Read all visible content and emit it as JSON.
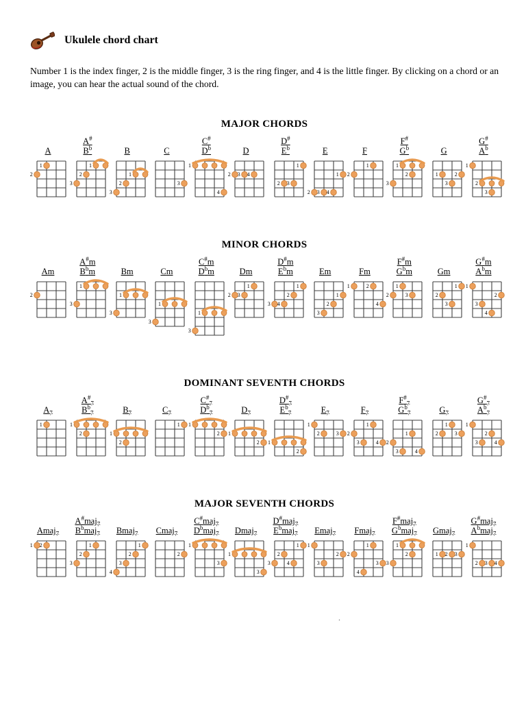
{
  "page": {
    "icon": "ukulele-icon",
    "title": "Ukulele chord chart",
    "intro": "Number 1 is the index finger, 2 is the middle finger, 3 is the ring finger, and 4 is the little finger. By clicking on a chord or an image, you can hear the actual sound of the chord.",
    "stray_mark": "."
  },
  "colors": {
    "dot_fill": "#ECA05C",
    "dot_stroke": "#CC7F38",
    "barre": "#E89A4F",
    "grid": "#3f3f3f",
    "number": "#000000"
  },
  "diagram": {
    "strings": 4,
    "default_frets": 4,
    "dot_format": "string,fret,finger",
    "barre_format": "fret,fromString,toString,finger"
  },
  "sections": [
    {
      "title": "MAJOR CHORDS",
      "chords": [
        {
          "labels": [
            "A"
          ],
          "dots": [
            [
              2,
              1,
              1
            ],
            [
              1,
              2,
              2
            ]
          ]
        },
        {
          "labels": [
            "A#",
            "Bb"
          ],
          "barres": [
            [
              1,
              3,
              4,
              1
            ]
          ],
          "dots": [
            [
              2,
              2,
              2
            ],
            [
              1,
              3,
              3
            ]
          ]
        },
        {
          "labels": [
            "B"
          ],
          "barres": [
            [
              2,
              3,
              4,
              1
            ]
          ],
          "dots": [
            [
              2,
              3,
              2
            ],
            [
              1,
              4,
              3
            ]
          ]
        },
        {
          "labels": [
            "C"
          ],
          "dots": [
            [
              4,
              3,
              3
            ]
          ]
        },
        {
          "labels": [
            "C#",
            "Db"
          ],
          "barres": [
            [
              1,
              1,
              4,
              1
            ]
          ],
          "dots": [
            [
              4,
              4,
              4
            ]
          ]
        },
        {
          "labels": [
            "D"
          ],
          "dots": [
            [
              1,
              2,
              2
            ],
            [
              2,
              2,
              3
            ],
            [
              3,
              2,
              4
            ]
          ]
        },
        {
          "labels": [
            "D#",
            "Eb"
          ],
          "dots": [
            [
              4,
              1,
              1
            ],
            [
              2,
              3,
              2
            ],
            [
              3,
              3,
              3
            ]
          ]
        },
        {
          "labels": [
            "E"
          ],
          "dots": [
            [
              4,
              2,
              1
            ],
            [
              1,
              4,
              2
            ],
            [
              2,
              4,
              3
            ],
            [
              3,
              4,
              4
            ]
          ]
        },
        {
          "labels": [
            "F"
          ],
          "dots": [
            [
              3,
              1,
              1
            ],
            [
              1,
              2,
              2
            ]
          ]
        },
        {
          "labels": [
            "F#",
            "Gb"
          ],
          "barres": [
            [
              1,
              2,
              4,
              1
            ]
          ],
          "dots": [
            [
              3,
              2,
              2
            ],
            [
              1,
              3,
              3
            ]
          ]
        },
        {
          "labels": [
            "G"
          ],
          "dots": [
            [
              2,
              2,
              1
            ],
            [
              4,
              2,
              2
            ],
            [
              3,
              3,
              3
            ]
          ]
        },
        {
          "labels": [
            "G#",
            "Ab"
          ],
          "barres": [
            [
              3,
              2,
              4,
              2
            ]
          ],
          "dots": [
            [
              1,
              1,
              1
            ],
            [
              3,
              4,
              3
            ]
          ]
        }
      ]
    },
    {
      "title": "MINOR CHORDS",
      "chords": [
        {
          "labels": [
            "Am"
          ],
          "dots": [
            [
              1,
              2,
              2
            ]
          ]
        },
        {
          "labels": [
            "A#m",
            "Bbm"
          ],
          "barres": [
            [
              1,
              2,
              4,
              1
            ]
          ],
          "dots": [
            [
              1,
              3,
              3
            ]
          ]
        },
        {
          "labels": [
            "Bm"
          ],
          "barres": [
            [
              2,
              2,
              4,
              1
            ]
          ],
          "dots": [
            [
              1,
              4,
              3
            ]
          ]
        },
        {
          "labels": [
            "Cm"
          ],
          "barres": [
            [
              3,
              2,
              4,
              1
            ]
          ],
          "dots": [
            [
              1,
              5,
              3
            ]
          ]
        },
        {
          "labels": [
            "C#m",
            "Dbm"
          ],
          "barres": [
            [
              4,
              2,
              4,
              1
            ]
          ],
          "dots": [
            [
              1,
              6,
              3
            ]
          ]
        },
        {
          "labels": [
            "Dm"
          ],
          "dots": [
            [
              3,
              1,
              1
            ],
            [
              1,
              2,
              2
            ],
            [
              2,
              2,
              3
            ]
          ]
        },
        {
          "labels": [
            "D#m",
            "Ebm"
          ],
          "dots": [
            [
              4,
              1,
              1
            ],
            [
              3,
              2,
              2
            ],
            [
              1,
              3,
              3
            ],
            [
              2,
              3,
              4
            ]
          ]
        },
        {
          "labels": [
            "Em"
          ],
          "dots": [
            [
              4,
              2,
              1
            ],
            [
              3,
              3,
              2
            ],
            [
              2,
              4,
              3
            ]
          ]
        },
        {
          "labels": [
            "Fm"
          ],
          "dots": [
            [
              1,
              1,
              1
            ],
            [
              3,
              1,
              2
            ],
            [
              4,
              3,
              4
            ]
          ]
        },
        {
          "labels": [
            "F#m",
            "Gbm"
          ],
          "dots": [
            [
              2,
              1,
              1
            ],
            [
              1,
              2,
              2
            ],
            [
              3,
              2,
              3
            ]
          ]
        },
        {
          "labels": [
            "Gm"
          ],
          "dots": [
            [
              4,
              1,
              1
            ],
            [
              2,
              2,
              2
            ],
            [
              3,
              3,
              3
            ]
          ]
        },
        {
          "labels": [
            "G#m",
            "Abm"
          ],
          "dots": [
            [
              1,
              1,
              1
            ],
            [
              4,
              2,
              2
            ],
            [
              2,
              3,
              3
            ],
            [
              3,
              4,
              4
            ]
          ]
        }
      ]
    },
    {
      "title": "DOMINANT SEVENTH CHORDS",
      "chords": [
        {
          "labels": [
            "A7"
          ],
          "dots": [
            [
              2,
              1,
              1
            ]
          ]
        },
        {
          "labels": [
            "A#7",
            "Bb7"
          ],
          "barres": [
            [
              1,
              1,
              4,
              1
            ]
          ],
          "dots": [
            [
              2,
              2,
              2
            ]
          ]
        },
        {
          "labels": [
            "B7"
          ],
          "barres": [
            [
              2,
              1,
              4,
              1
            ]
          ],
          "dots": [
            [
              2,
              3,
              2
            ]
          ]
        },
        {
          "labels": [
            "C7"
          ],
          "dots": [
            [
              4,
              1,
              1
            ]
          ]
        },
        {
          "labels": [
            "C#7",
            "Db7"
          ],
          "barres": [
            [
              1,
              1,
              4,
              1
            ]
          ],
          "dots": [
            [
              4,
              2,
              2
            ]
          ]
        },
        {
          "labels": [
            "D7"
          ],
          "barres": [
            [
              2,
              1,
              4,
              1
            ]
          ],
          "dots": [
            [
              4,
              3,
              2
            ]
          ]
        },
        {
          "labels": [
            "D#7",
            "Eb7"
          ],
          "barres": [
            [
              3,
              1,
              4,
              1
            ]
          ],
          "dots": [
            [
              4,
              4,
              2
            ]
          ]
        },
        {
          "labels": [
            "E7"
          ],
          "dots": [
            [
              1,
              1,
              1
            ],
            [
              2,
              2,
              2
            ],
            [
              4,
              2,
              3
            ]
          ]
        },
        {
          "labels": [
            "F7"
          ],
          "dots": [
            [
              3,
              1,
              1
            ],
            [
              1,
              2,
              2
            ],
            [
              2,
              3,
              3
            ],
            [
              4,
              3,
              4
            ]
          ]
        },
        {
          "labels": [
            "F#7",
            "Gb7"
          ],
          "dots": [
            [
              3,
              2,
              1
            ],
            [
              1,
              3,
              2
            ],
            [
              2,
              4,
              3
            ],
            [
              4,
              4,
              4
            ]
          ]
        },
        {
          "labels": [
            "G7"
          ],
          "dots": [
            [
              3,
              1,
              1
            ],
            [
              2,
              2,
              2
            ],
            [
              4,
              2,
              3
            ]
          ]
        },
        {
          "labels": [
            "G#7",
            "Ab7"
          ],
          "dots": [
            [
              1,
              1,
              1
            ],
            [
              3,
              2,
              2
            ],
            [
              2,
              3,
              3
            ],
            [
              4,
              3,
              4
            ]
          ]
        }
      ]
    },
    {
      "title": "MAJOR SEVENTH CHORDS",
      "chords": [
        {
          "labels": [
            "Amaj7"
          ],
          "dots": [
            [
              1,
              1,
              1
            ],
            [
              2,
              1,
              2
            ]
          ]
        },
        {
          "labels": [
            "A#maj7",
            "Bbmaj7"
          ],
          "dots": [
            [
              3,
              1,
              1
            ],
            [
              2,
              2,
              2
            ],
            [
              1,
              3,
              3
            ]
          ]
        },
        {
          "labels": [
            "Bmaj7"
          ],
          "dots": [
            [
              4,
              1,
              1
            ],
            [
              3,
              2,
              2
            ],
            [
              2,
              3,
              3
            ],
            [
              1,
              4,
              4
            ]
          ]
        },
        {
          "labels": [
            "Cmaj7"
          ],
          "dots": [
            [
              4,
              2,
              2
            ]
          ]
        },
        {
          "labels": [
            "C#maj7",
            "Dbmaj7"
          ],
          "barres": [
            [
              1,
              1,
              4,
              1
            ]
          ],
          "dots": [
            [
              4,
              3,
              3
            ]
          ]
        },
        {
          "labels": [
            "Dmaj7"
          ],
          "barres": [
            [
              2,
              1,
              4,
              1
            ]
          ],
          "dots": [
            [
              4,
              4,
              3
            ]
          ]
        },
        {
          "labels": [
            "D#maj7",
            "Ebmaj7"
          ],
          "dots": [
            [
              4,
              1,
              1
            ],
            [
              2,
              2,
              2
            ],
            [
              1,
              3,
              3
            ],
            [
              3,
              3,
              4
            ]
          ]
        },
        {
          "labels": [
            "Emaj7"
          ],
          "dots": [
            [
              1,
              1,
              1
            ],
            [
              4,
              2,
              2
            ],
            [
              2,
              3,
              3
            ]
          ]
        },
        {
          "labels": [
            "Fmaj7"
          ],
          "dots": [
            [
              3,
              1,
              1
            ],
            [
              1,
              2,
              2
            ],
            [
              4,
              3,
              3
            ],
            [
              2,
              4,
              4
            ]
          ]
        },
        {
          "labels": [
            "F#maj7",
            "Gbmaj7"
          ],
          "barres": [
            [
              1,
              2,
              4,
              1
            ]
          ],
          "dots": [
            [
              3,
              2,
              2
            ],
            [
              1,
              3,
              3
            ]
          ]
        },
        {
          "labels": [
            "Gmaj7"
          ],
          "dots": [
            [
              2,
              2,
              1
            ],
            [
              3,
              2,
              2
            ],
            [
              4,
              2,
              3
            ]
          ]
        },
        {
          "labels": [
            "G#maj7",
            "Abmaj7"
          ],
          "dots": [
            [
              1,
              1,
              1
            ],
            [
              2,
              3,
              2
            ],
            [
              3,
              3,
              3
            ],
            [
              4,
              3,
              4
            ]
          ]
        }
      ]
    }
  ]
}
